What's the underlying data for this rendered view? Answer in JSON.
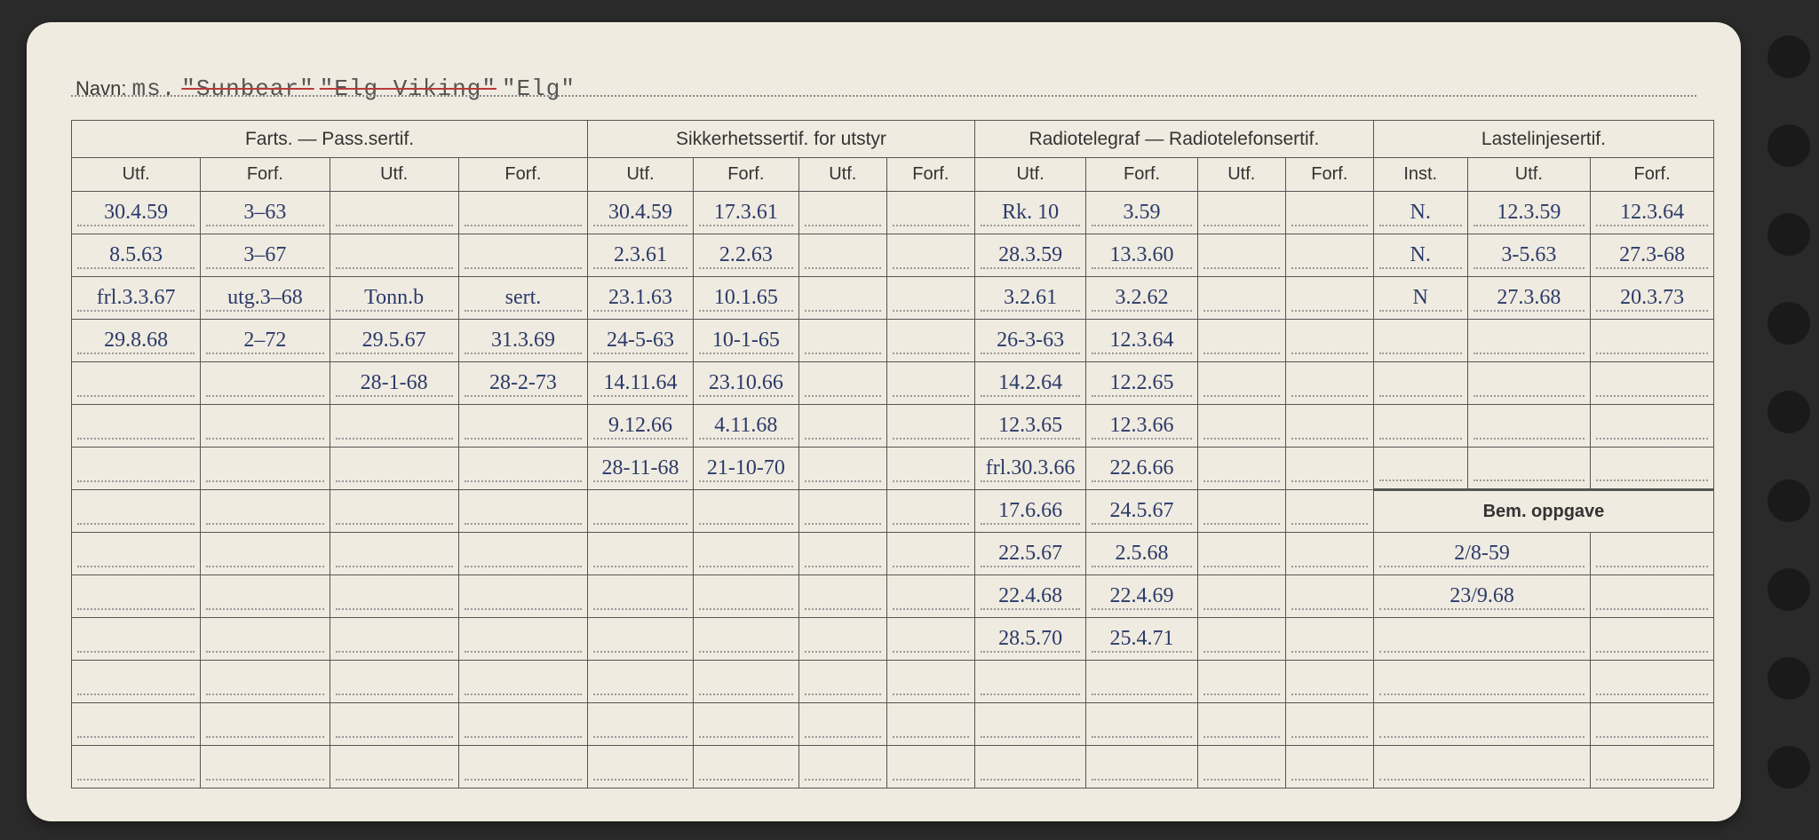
{
  "header": {
    "navn_label": "Navn:",
    "prefix": "ms.",
    "struck1": "\"Sunbear\"",
    "struck2": "\"Elg Viking\"",
    "final": "\"Elg\""
  },
  "groups": {
    "farts": "Farts. — Pass.sertif.",
    "sikk": "Sikkerhetssertif. for utstyr",
    "radio": "Radiotelegraf — Radiotelefonsertif.",
    "laste": "Lastelinjesertif.",
    "bem": "Bem. oppgave"
  },
  "sub": {
    "utf": "Utf.",
    "forf": "Forf.",
    "inst": "Inst."
  },
  "rows": [
    {
      "c1": "30.4.59",
      "c2": "3–63",
      "c3": "",
      "c4": "",
      "c5": "30.4.59",
      "c6": "17.3.61",
      "c7": "",
      "c8": "",
      "c9": "Rk. 10",
      "c10": "3.59",
      "c11": "",
      "c12": "",
      "c13": "N.",
      "c14": "12.3.59",
      "c15": "12.3.64"
    },
    {
      "c1": "8.5.63",
      "c2": "3–67",
      "c3": "",
      "c4": "",
      "c5": "2.3.61",
      "c6": "2.2.63",
      "c7": "",
      "c8": "",
      "c9": "28.3.59",
      "c10": "13.3.60",
      "c11": "",
      "c12": "",
      "c13": "N.",
      "c14": "3-5.63",
      "c15": "27.3-68"
    },
    {
      "c1": "frl.3.3.67",
      "c2": "utg.3–68",
      "c3": "Tonn.b",
      "c4": "sert.",
      "c5": "23.1.63",
      "c6": "10.1.65",
      "c7": "",
      "c8": "",
      "c9": "3.2.61",
      "c10": "3.2.62",
      "c11": "",
      "c12": "",
      "c13": "N",
      "c14": "27.3.68",
      "c15": "20.3.73"
    },
    {
      "c1": "29.8.68",
      "c2": "2–72",
      "c3": "29.5.67",
      "c4": "31.3.69",
      "c5": "24-5-63",
      "c6": "10-1-65",
      "c7": "",
      "c8": "",
      "c9": "26-3-63",
      "c10": "12.3.64",
      "c11": "",
      "c12": "",
      "c13": "",
      "c14": "",
      "c15": ""
    },
    {
      "c1": "",
      "c2": "",
      "c3": "28-1-68",
      "c4": "28-2-73",
      "c5": "14.11.64",
      "c6": "23.10.66",
      "c7": "",
      "c8": "",
      "c9": "14.2.64",
      "c10": "12.2.65",
      "c11": "",
      "c12": "",
      "c13": "",
      "c14": "",
      "c15": ""
    },
    {
      "c1": "",
      "c2": "",
      "c3": "",
      "c4": "",
      "c5": "9.12.66",
      "c6": "4.11.68",
      "c7": "",
      "c8": "",
      "c9": "12.3.65",
      "c10": "12.3.66",
      "c11": "",
      "c12": "",
      "c13": "",
      "c14": "",
      "c15": ""
    },
    {
      "c1": "",
      "c2": "",
      "c3": "",
      "c4": "",
      "c5": "28-11-68",
      "c6": "21-10-70",
      "c7": "",
      "c8": "",
      "c9": "frl.30.3.66",
      "c10": "22.6.66",
      "c11": "",
      "c12": "",
      "c13": "",
      "c14": "",
      "c15": ""
    },
    {
      "c1": "",
      "c2": "",
      "c3": "",
      "c4": "",
      "c5": "",
      "c6": "",
      "c7": "",
      "c8": "",
      "c9": "17.6.66",
      "c10": "24.5.67",
      "c11": "",
      "c12": ""
    },
    {
      "c1": "",
      "c2": "",
      "c3": "",
      "c4": "",
      "c5": "",
      "c6": "",
      "c7": "",
      "c8": "",
      "c9": "22.5.67",
      "c10": "2.5.68",
      "c11": "",
      "c12": "",
      "b1": "2/8-59",
      "b2": ""
    },
    {
      "c1": "",
      "c2": "",
      "c3": "",
      "c4": "",
      "c5": "",
      "c6": "",
      "c7": "",
      "c8": "",
      "c9": "22.4.68",
      "c10": "22.4.69",
      "c11": "",
      "c12": "",
      "b1": "23/9.68",
      "b2": ""
    },
    {
      "c1": "",
      "c2": "",
      "c3": "",
      "c4": "",
      "c5": "",
      "c6": "",
      "c7": "",
      "c8": "",
      "c9": "28.5.70",
      "c10": "25.4.71",
      "c11": "",
      "c12": "",
      "b1": "",
      "b2": ""
    },
    {
      "c1": "",
      "c2": "",
      "c3": "",
      "c4": "",
      "c5": "",
      "c6": "",
      "c7": "",
      "c8": "",
      "c9": "",
      "c10": "",
      "c11": "",
      "c12": "",
      "b1": "",
      "b2": ""
    },
    {
      "c1": "",
      "c2": "",
      "c3": "",
      "c4": "",
      "c5": "",
      "c6": "",
      "c7": "",
      "c8": "",
      "c9": "",
      "c10": "",
      "c11": "",
      "c12": "",
      "b1": "",
      "b2": ""
    },
    {
      "c1": "",
      "c2": "",
      "c3": "",
      "c4": "",
      "c5": "",
      "c6": "",
      "c7": "",
      "c8": "",
      "c9": "",
      "c10": "",
      "c11": "",
      "c12": "",
      "b1": "",
      "b2": ""
    }
  ]
}
